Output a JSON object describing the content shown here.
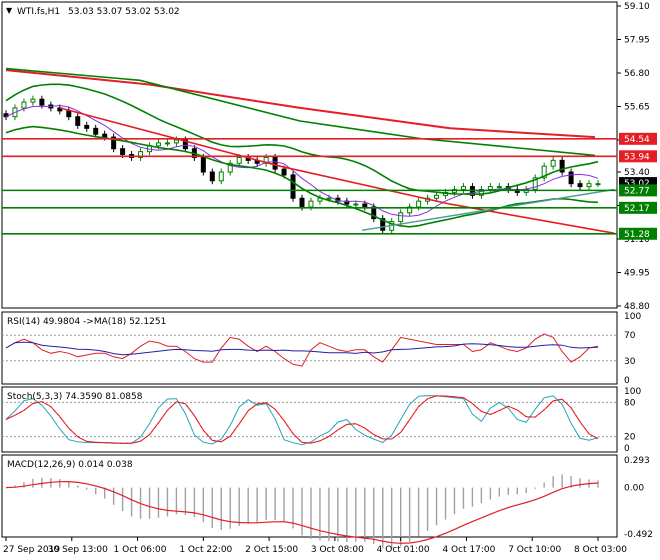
{
  "main": {
    "symbol_label": "WTI.fs,H1",
    "ohlc_label": "53.03 53.07 53.02 53.02",
    "price_axis": [
      "59.10",
      "57.95",
      "56.80",
      "55.65",
      "54.50",
      "53.40",
      "52.25",
      "51.10",
      "49.95",
      "48.80"
    ],
    "level_labels": [
      {
        "text": "54.54",
        "value": 54.54,
        "color": "#e31e24"
      },
      {
        "text": "53.94",
        "value": 53.94,
        "color": "#e31e24"
      },
      {
        "text": "53.02",
        "value": 53.02,
        "color": "#000000"
      },
      {
        "text": "52.77",
        "value": 52.77,
        "color": "#008000"
      },
      {
        "text": "52.17",
        "value": 52.17,
        "color": "#008000"
      },
      {
        "text": "51.28",
        "value": 51.28,
        "color": "#008000"
      }
    ]
  },
  "rsi": {
    "label": "RSI(14) 49.9804 ->MA(18) 52.1251",
    "axis": [
      "100",
      "70",
      "30",
      "0"
    ]
  },
  "stoch": {
    "label": "Stoch(5,3,3) 74.3590 81.0858",
    "axis": [
      "100",
      "80",
      "20",
      "0"
    ]
  },
  "macd": {
    "label": "MACD(12,26,9) 0.014 0.038",
    "axis": [
      "0.293",
      "0.00",
      "-0.492"
    ]
  },
  "time_axis": [
    "27 Sep 2019",
    "30 Sep 13:00",
    "1 Oct 06:00",
    "1 Oct 22:00",
    "2 Oct 15:00",
    "3 Oct 08:00",
    "4 Oct 01:00",
    "4 Oct 17:00",
    "7 Oct 10:00",
    "8 Oct 03:00"
  ],
  "chart_data": {
    "type": "line",
    "price_range": [
      48.8,
      59.1
    ],
    "closes": [
      55.3,
      55.6,
      55.8,
      55.9,
      55.7,
      55.6,
      55.5,
      55.3,
      55.0,
      54.9,
      54.7,
      54.6,
      54.2,
      54.0,
      53.9,
      54.1,
      54.3,
      54.4,
      54.4,
      54.5,
      54.2,
      53.9,
      53.4,
      53.1,
      53.4,
      53.7,
      53.9,
      53.8,
      53.7,
      53.9,
      53.5,
      53.3,
      52.5,
      52.2,
      52.4,
      52.5,
      52.5,
      52.4,
      52.3,
      52.3,
      52.2,
      51.8,
      51.4,
      51.7,
      52.0,
      52.2,
      52.4,
      52.5,
      52.6,
      52.7,
      52.8,
      52.9,
      52.6,
      52.8,
      52.9,
      52.9,
      52.8,
      52.7,
      52.8,
      53.2,
      53.6,
      53.8,
      53.4,
      53.0,
      52.9,
      53.0,
      53.0
    ],
    "colors": {
      "bull": "#008000",
      "bear": "#000000",
      "resistance": "#e31e24",
      "support": "#008000",
      "bollinger": "#008000",
      "ma_long": "#e31e24",
      "ma_mid": "#008000",
      "rsi": "#e31e24",
      "rsi_ma": "#1f1faa",
      "stoch_main": "#26a5b8",
      "stoch_signal": "#e31e24",
      "macd_hist": "#a0a0a0",
      "macd_signal": "#e31e24"
    }
  }
}
